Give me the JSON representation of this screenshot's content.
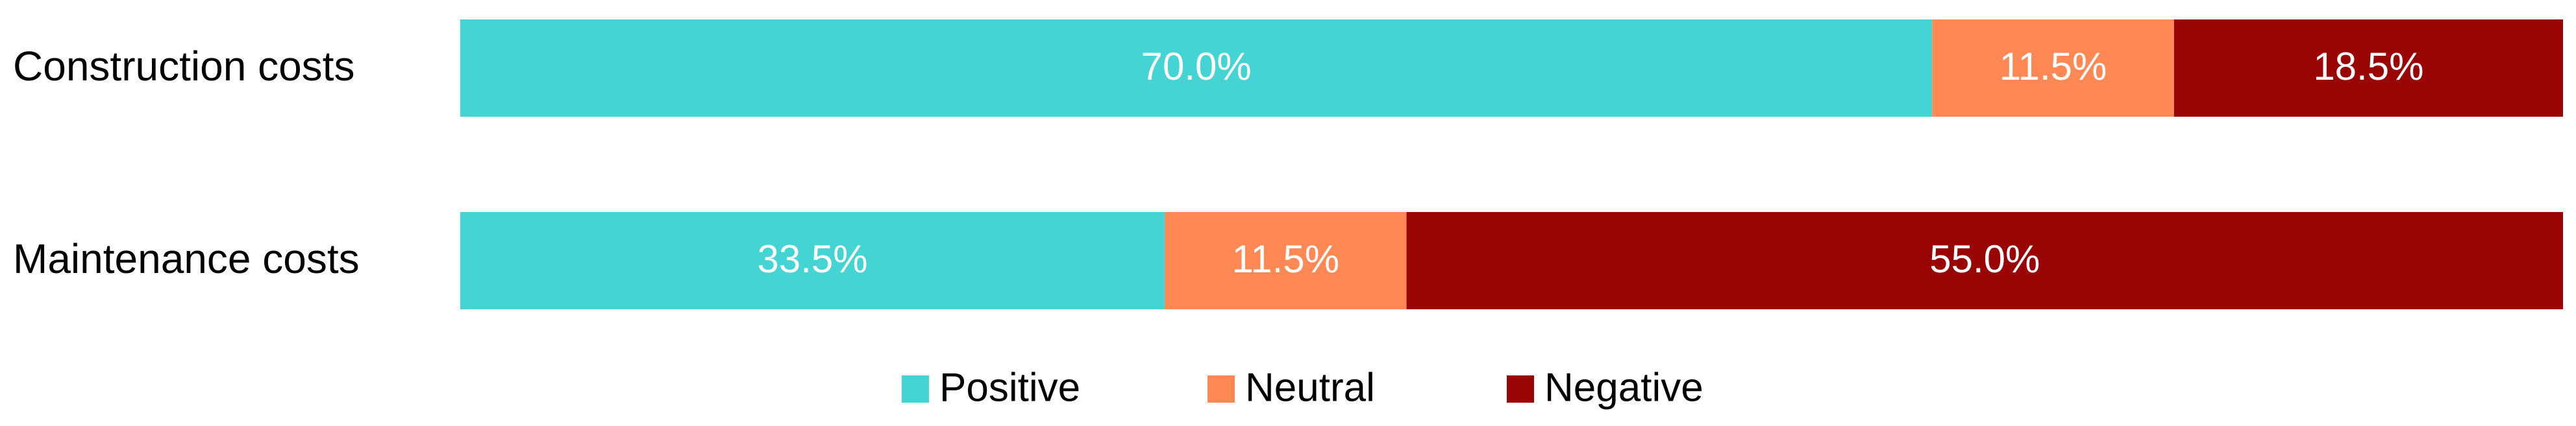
{
  "chart_data": {
    "type": "stacked-bar-horizontal",
    "categories": [
      "Construction costs",
      "Maintenance costs"
    ],
    "series": [
      {
        "name": "Positive",
        "color": "#44d4d4",
        "values": [
          70.0,
          33.5
        ],
        "value_labels": [
          "70.0%",
          "33.5%"
        ]
      },
      {
        "name": "Neutral",
        "color": "#ff8855",
        "values": [
          11.5,
          11.5
        ],
        "value_labels": [
          "11.5%",
          "11.5%"
        ]
      },
      {
        "name": "Negative",
        "color": "#990505",
        "values": [
          18.5,
          55.0
        ],
        "value_labels": [
          "18.5%",
          "55.0%"
        ]
      }
    ],
    "xlim": [
      0,
      100
    ],
    "legend": "bottom"
  }
}
